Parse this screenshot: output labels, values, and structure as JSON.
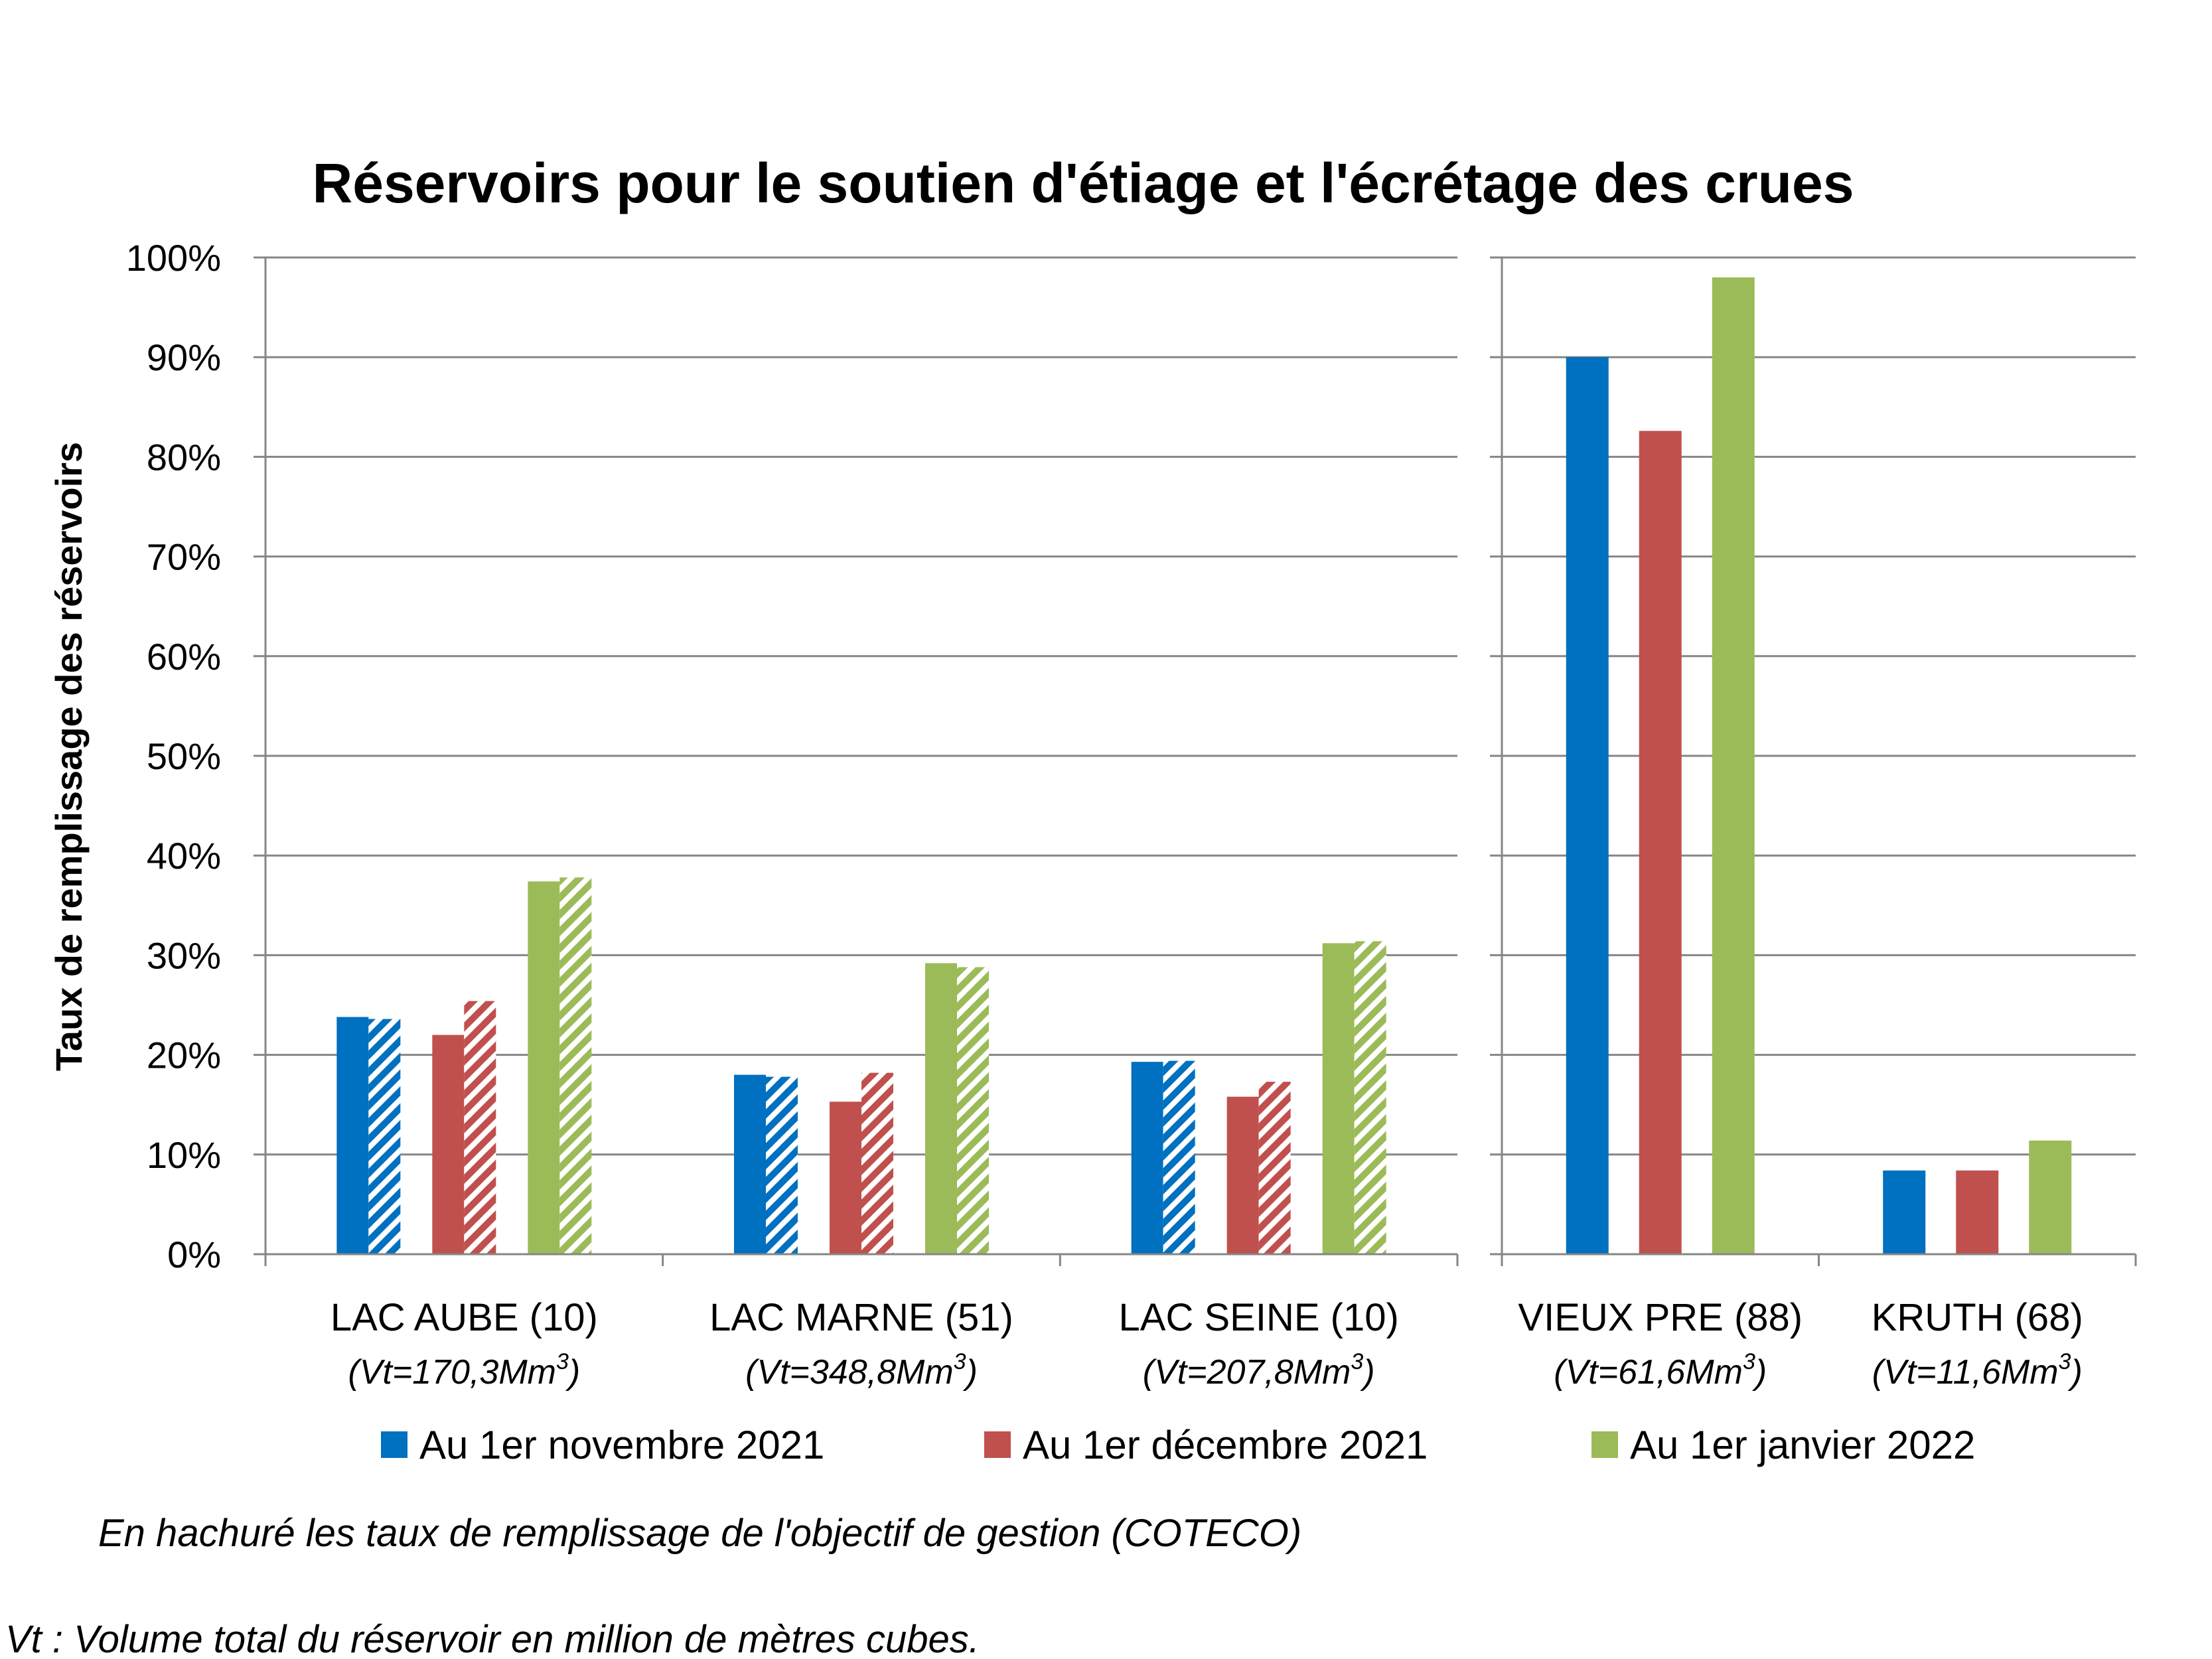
{
  "chart_data": {
    "type": "bar",
    "title": "Réservoirs pour le soutien d'étiage et l'écrétage des crues",
    "ylabel": "Taux de remplissage des réservoirs",
    "xlabel": "",
    "ylim": [
      0,
      100
    ],
    "y_ticks": [
      "0%",
      "10%",
      "20%",
      "30%",
      "40%",
      "50%",
      "60%",
      "70%",
      "80%",
      "90%",
      "100%"
    ],
    "grid": true,
    "legend_position": "bottom",
    "panels": [
      {
        "categories": [
          {
            "name": "LAC AUBE (10)",
            "volume_prefix": "(Vt=170,3Mm",
            "volume_exp": "3",
            "volume_suffix": ")"
          },
          {
            "name": "LAC MARNE (51)",
            "volume_prefix": "(Vt=348,8Mm",
            "volume_exp": "3",
            "volume_suffix": ")"
          },
          {
            "name": "LAC SEINE (10)",
            "volume_prefix": "(Vt=207,8Mm",
            "volume_exp": "3",
            "volume_suffix": ")"
          }
        ],
        "series": [
          {
            "name": "Au 1er novembre 2021",
            "values": [
              23.8,
              18.0,
              19.3
            ],
            "objective": [
              23.6,
              17.8,
              19.4
            ]
          },
          {
            "name": "Au 1er décembre 2021",
            "values": [
              22.0,
              15.3,
              15.8
            ],
            "objective": [
              25.4,
              18.2,
              17.3
            ]
          },
          {
            "name": "Au 1er janvier 2022",
            "values": [
              37.4,
              29.2,
              31.2
            ],
            "objective": [
              37.8,
              28.8,
              31.4
            ]
          }
        ]
      },
      {
        "categories": [
          {
            "name": "VIEUX PRE (88)",
            "volume_prefix": "(Vt=61,6Mm",
            "volume_exp": "3",
            "volume_suffix": ")"
          },
          {
            "name": "KRUTH (68)",
            "volume_prefix": "(Vt=11,6Mm",
            "volume_exp": "3",
            "volume_suffix": ")"
          }
        ],
        "series": [
          {
            "name": "Au 1er novembre 2021",
            "values": [
              90.0,
              8.4
            ]
          },
          {
            "name": "Au 1er décembre 2021",
            "values": [
              82.6,
              8.4
            ]
          },
          {
            "name": "Au 1er janvier 2022",
            "values": [
              98.0,
              11.4
            ]
          }
        ]
      }
    ]
  },
  "colors": {
    "series": [
      "#0070C0",
      "#C0504D",
      "#9BBB59"
    ],
    "grid": "#868686",
    "axis": "#868686"
  },
  "legend": [
    {
      "label": "Au 1er novembre 2021",
      "color": "#0070C0"
    },
    {
      "label": "Au 1er décembre 2021",
      "color": "#C0504D"
    },
    {
      "label": "Au 1er janvier 2022",
      "color": "#9BBB59"
    }
  ],
  "notes": {
    "hatch_note": "En hachuré les taux de remplissage de l'objectif de gestion (COTECO)",
    "vt_note": "Vt : Volume total du réservoir en million de mètres cubes."
  }
}
